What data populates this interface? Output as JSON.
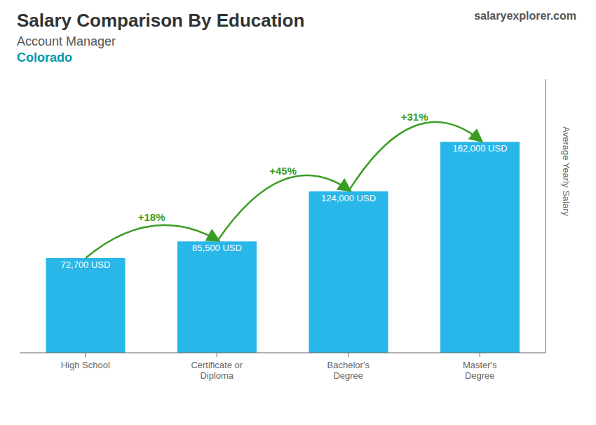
{
  "chart_data": {
    "type": "bar",
    "title": "Salary Comparison By Education",
    "subtitle": "Account Manager",
    "y_label": "Average Yearly Salary",
    "categories": [
      "High School",
      "Certificate or\nDiploma",
      "Bachelor's\nDegree",
      "Master's\nDegree"
    ],
    "values": [
      72700,
      85500,
      124000,
      162000
    ],
    "value_labels": [
      "72,700 USD",
      "85,500 USD",
      "124,000 USD",
      "162,000 USD"
    ],
    "data_labels": true,
    "color": "#29b6e8",
    "ylim": [
      0,
      210000
    ],
    "tick_labels": "x",
    "grid": false,
    "annotations": [
      {
        "text": "Colorado"
      },
      {
        "text": "salaryexplorer.com"
      },
      {
        "text": "+18%",
        "from": "High School",
        "to": "Certificate or\nDiploma"
      },
      {
        "text": "+45%",
        "from": "Certificate or\nDiploma",
        "to": "Bachelor's\nDegree"
      },
      {
        "text": "+31%",
        "from": "Bachelor's\nDegree",
        "to": "Master's\nDegree"
      }
    ]
  }
}
